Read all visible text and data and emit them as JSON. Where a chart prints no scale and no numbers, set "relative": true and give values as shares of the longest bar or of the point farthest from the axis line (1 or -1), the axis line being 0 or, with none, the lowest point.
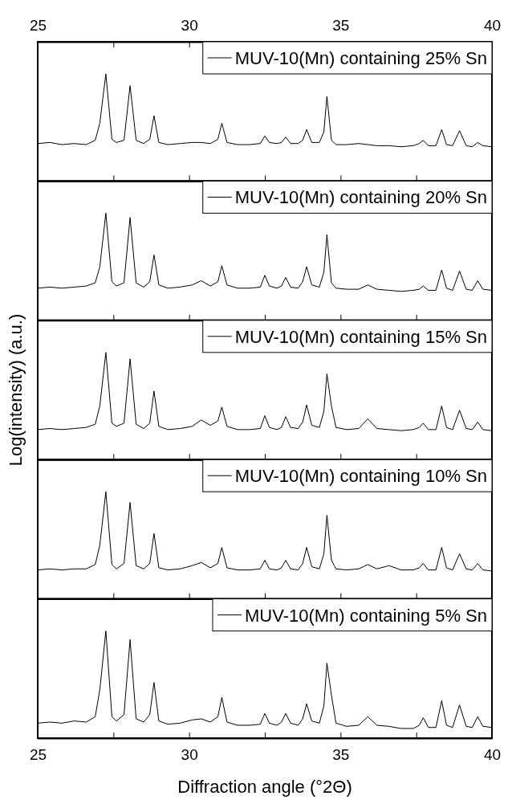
{
  "chart_data": [
    {
      "type": "line",
      "relative": true,
      "legend": "top right",
      "tick_labels": false,
      "xlim": [
        25,
        40
      ],
      "xticks": [
        25,
        27.5,
        30,
        32.5,
        35,
        37.5,
        40
      ],
      "x2lim": [
        25,
        40
      ],
      "x2ticks": [
        25,
        {
          "value": 27.5,
          "label": null
        },
        30,
        {
          "value": 32.5,
          "label": null
        },
        35,
        {
          "value": 37.5,
          "label": null
        },
        40
      ],
      "x": [
        25.0,
        25.4,
        25.8,
        26.2,
        26.6,
        26.9,
        27.05,
        27.25,
        27.45,
        27.6,
        27.85,
        28.05,
        28.25,
        28.5,
        28.7,
        28.84,
        29.0,
        29.3,
        29.7,
        30.1,
        30.4,
        30.7,
        30.95,
        31.08,
        31.25,
        31.6,
        32.0,
        32.35,
        32.5,
        32.65,
        32.9,
        33.05,
        33.19,
        33.35,
        33.6,
        33.75,
        33.88,
        34.05,
        34.3,
        34.45,
        34.55,
        34.7,
        34.85,
        35.2,
        35.6,
        35.9,
        36.2,
        36.6,
        37.0,
        37.4,
        37.6,
        37.73,
        37.9,
        38.15,
        38.34,
        38.5,
        38.7,
        38.93,
        39.15,
        39.35,
        39.53,
        39.7,
        40.0
      ],
      "series": [
        {
          "name": "MUV-10(Mn) containing 25% Sn",
          "color": "#000000",
          "values": [
            0.35,
            0.36,
            0.34,
            0.35,
            0.34,
            0.38,
            0.54,
            1,
            0.39,
            0.36,
            0.38,
            0.89,
            0.38,
            0.35,
            0.39,
            0.61,
            0.36,
            0.34,
            0.35,
            0.36,
            0.36,
            0.35,
            0.39,
            0.54,
            0.36,
            0.34,
            0.34,
            0.35,
            0.42,
            0.36,
            0.35,
            0.36,
            0.41,
            0.35,
            0.35,
            0.38,
            0.48,
            0.36,
            0.36,
            0.46,
            0.79,
            0.38,
            0.34,
            0.34,
            0.35,
            0.34,
            0.33,
            0.33,
            0.32,
            0.33,
            0.35,
            0.38,
            0.33,
            0.33,
            0.48,
            0.34,
            0.33,
            0.47,
            0.33,
            0.32,
            0.36,
            0.33,
            0.32
          ]
        }
      ]
    },
    {
      "type": "line",
      "relative": true,
      "legend": "top right",
      "tick_labels": false,
      "xlim": [
        25,
        40
      ],
      "xticks": [
        25,
        27.5,
        30,
        32.5,
        35,
        37.5,
        40
      ],
      "x": [
        25.0,
        25.4,
        25.8,
        26.2,
        26.6,
        26.9,
        27.05,
        27.25,
        27.45,
        27.6,
        27.85,
        28.05,
        28.25,
        28.5,
        28.7,
        28.84,
        29.0,
        29.3,
        29.7,
        30.1,
        30.4,
        30.7,
        30.95,
        31.08,
        31.25,
        31.6,
        32.0,
        32.35,
        32.5,
        32.65,
        32.9,
        33.05,
        33.19,
        33.35,
        33.6,
        33.75,
        33.88,
        34.05,
        34.3,
        34.45,
        34.55,
        34.7,
        34.85,
        35.2,
        35.6,
        35.9,
        36.2,
        36.6,
        37.0,
        37.4,
        37.6,
        37.73,
        37.9,
        38.15,
        38.34,
        38.5,
        38.7,
        38.93,
        39.15,
        39.35,
        39.53,
        39.7,
        40.0
      ],
      "series": [
        {
          "name": "MUV-10(Mn) containing 20% Sn",
          "color": "#000000",
          "values": [
            0.3,
            0.31,
            0.3,
            0.31,
            0.32,
            0.35,
            0.5,
            1,
            0.36,
            0.32,
            0.35,
            0.96,
            0.35,
            0.31,
            0.36,
            0.61,
            0.33,
            0.3,
            0.31,
            0.33,
            0.37,
            0.32,
            0.36,
            0.51,
            0.33,
            0.3,
            0.3,
            0.31,
            0.42,
            0.32,
            0.3,
            0.32,
            0.4,
            0.31,
            0.3,
            0.36,
            0.5,
            0.33,
            0.31,
            0.45,
            0.8,
            0.35,
            0.3,
            0.29,
            0.29,
            0.33,
            0.29,
            0.28,
            0.27,
            0.28,
            0.29,
            0.32,
            0.28,
            0.28,
            0.47,
            0.3,
            0.28,
            0.46,
            0.29,
            0.28,
            0.37,
            0.29,
            0.28
          ]
        }
      ]
    },
    {
      "type": "line",
      "relative": true,
      "legend": "top right",
      "tick_labels": false,
      "xlim": [
        25,
        40
      ],
      "xticks": [
        25,
        27.5,
        30,
        32.5,
        35,
        37.5,
        40
      ],
      "ylabel": "Log(intensity) (a.u.)",
      "x": [
        25.0,
        25.4,
        25.8,
        26.2,
        26.6,
        26.9,
        27.05,
        27.25,
        27.45,
        27.6,
        27.85,
        28.05,
        28.25,
        28.5,
        28.7,
        28.84,
        29.0,
        29.3,
        29.7,
        30.1,
        30.4,
        30.7,
        30.95,
        31.08,
        31.25,
        31.6,
        32.0,
        32.35,
        32.5,
        32.65,
        32.9,
        33.05,
        33.19,
        33.35,
        33.6,
        33.75,
        33.88,
        34.05,
        34.3,
        34.45,
        34.55,
        34.7,
        34.85,
        35.2,
        35.6,
        35.9,
        36.2,
        36.6,
        37.0,
        37.4,
        37.6,
        37.73,
        37.9,
        38.15,
        38.34,
        38.5,
        38.7,
        38.93,
        39.15,
        39.35,
        39.53,
        39.7,
        40.0
      ],
      "series": [
        {
          "name": "MUV-10(Mn) containing 15% Sn",
          "color": "#000000",
          "values": [
            0.28,
            0.29,
            0.28,
            0.29,
            0.3,
            0.33,
            0.5,
            1,
            0.34,
            0.31,
            0.34,
            0.94,
            0.33,
            0.29,
            0.34,
            0.64,
            0.31,
            0.28,
            0.29,
            0.31,
            0.37,
            0.32,
            0.36,
            0.49,
            0.31,
            0.28,
            0.28,
            0.29,
            0.41,
            0.3,
            0.28,
            0.3,
            0.4,
            0.3,
            0.29,
            0.35,
            0.51,
            0.32,
            0.3,
            0.45,
            0.8,
            0.5,
            0.3,
            0.28,
            0.29,
            0.38,
            0.29,
            0.28,
            0.27,
            0.28,
            0.3,
            0.34,
            0.28,
            0.28,
            0.5,
            0.3,
            0.28,
            0.46,
            0.29,
            0.28,
            0.35,
            0.28,
            0.27
          ]
        }
      ]
    },
    {
      "type": "line",
      "relative": true,
      "legend": "top right",
      "tick_labels": false,
      "xlim": [
        25,
        40
      ],
      "xticks": [
        25,
        27.5,
        30,
        32.5,
        35,
        37.5,
        40
      ],
      "x": [
        25.0,
        25.4,
        25.8,
        26.2,
        26.6,
        26.9,
        27.05,
        27.25,
        27.45,
        27.6,
        27.85,
        28.05,
        28.25,
        28.5,
        28.7,
        28.84,
        29.0,
        29.3,
        29.7,
        30.1,
        30.4,
        30.7,
        30.95,
        31.08,
        31.25,
        31.6,
        32.0,
        32.35,
        32.5,
        32.65,
        32.9,
        33.05,
        33.19,
        33.35,
        33.6,
        33.75,
        33.88,
        34.05,
        34.3,
        34.45,
        34.55,
        34.7,
        34.85,
        35.2,
        35.6,
        35.9,
        36.2,
        36.6,
        37.0,
        37.4,
        37.6,
        37.73,
        37.9,
        38.15,
        38.34,
        38.5,
        38.7,
        38.93,
        39.15,
        39.35,
        39.53,
        39.7,
        40.0
      ],
      "series": [
        {
          "name": "MUV-10(Mn) containing 10% Sn",
          "color": "#000000",
          "values": [
            0.27,
            0.28,
            0.27,
            0.28,
            0.28,
            0.32,
            0.5,
            1,
            0.32,
            0.28,
            0.33,
            0.9,
            0.31,
            0.28,
            0.33,
            0.61,
            0.29,
            0.27,
            0.28,
            0.31,
            0.34,
            0.29,
            0.33,
            0.48,
            0.29,
            0.27,
            0.27,
            0.28,
            0.36,
            0.28,
            0.27,
            0.29,
            0.36,
            0.28,
            0.27,
            0.33,
            0.48,
            0.3,
            0.28,
            0.42,
            0.78,
            0.36,
            0.28,
            0.27,
            0.28,
            0.32,
            0.28,
            0.31,
            0.27,
            0.27,
            0.29,
            0.33,
            0.27,
            0.27,
            0.48,
            0.29,
            0.27,
            0.42,
            0.28,
            0.27,
            0.33,
            0.27,
            0.26
          ]
        }
      ]
    },
    {
      "type": "line",
      "relative": true,
      "legend": "top right",
      "tick_labels": "x",
      "xlim": [
        25,
        40
      ],
      "xticks": [
        25,
        {
          "value": 27.5,
          "label": null
        },
        30,
        {
          "value": 32.5,
          "label": null
        },
        35,
        {
          "value": 37.5,
          "label": null
        },
        40
      ],
      "xlabel": "Diffraction angle (°2Θ)",
      "x": [
        25.0,
        25.4,
        25.8,
        26.2,
        26.6,
        26.9,
        27.05,
        27.25,
        27.45,
        27.6,
        27.85,
        28.05,
        28.25,
        28.5,
        28.7,
        28.84,
        29.0,
        29.3,
        29.7,
        30.1,
        30.4,
        30.7,
        30.95,
        31.08,
        31.25,
        31.6,
        32.0,
        32.35,
        32.5,
        32.65,
        32.9,
        33.05,
        33.19,
        33.35,
        33.6,
        33.75,
        33.88,
        34.05,
        34.3,
        34.45,
        34.55,
        34.7,
        34.85,
        35.2,
        35.6,
        35.9,
        36.2,
        36.6,
        37.0,
        37.4,
        37.6,
        37.73,
        37.9,
        38.15,
        38.34,
        38.5,
        38.7,
        38.93,
        39.15,
        39.35,
        39.53,
        39.7,
        40.0
      ],
      "series": [
        {
          "name": "MUV-10(Mn) containing 5% Sn",
          "color": "#000000",
          "values": [
            0.14,
            0.15,
            0.14,
            0.16,
            0.15,
            0.2,
            0.45,
            1,
            0.2,
            0.16,
            0.22,
            0.92,
            0.18,
            0.15,
            0.22,
            0.52,
            0.16,
            0.13,
            0.14,
            0.17,
            0.18,
            0.15,
            0.2,
            0.38,
            0.15,
            0.12,
            0.12,
            0.13,
            0.23,
            0.14,
            0.12,
            0.15,
            0.23,
            0.14,
            0.12,
            0.18,
            0.32,
            0.16,
            0.14,
            0.3,
            0.7,
            0.4,
            0.14,
            0.11,
            0.12,
            0.2,
            0.12,
            0.11,
            0.09,
            0.09,
            0.12,
            0.19,
            0.1,
            0.1,
            0.35,
            0.12,
            0.1,
            0.31,
            0.11,
            0.1,
            0.2,
            0.11,
            0.1
          ]
        }
      ]
    }
  ]
}
